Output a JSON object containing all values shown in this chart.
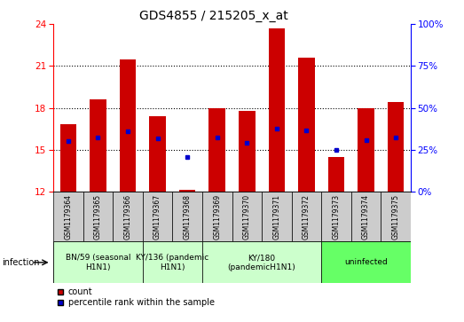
{
  "title": "GDS4855 / 215205_x_at",
  "samples": [
    "GSM1179364",
    "GSM1179365",
    "GSM1179366",
    "GSM1179367",
    "GSM1179368",
    "GSM1179369",
    "GSM1179370",
    "GSM1179371",
    "GSM1179372",
    "GSM1179373",
    "GSM1179374",
    "GSM1179375"
  ],
  "bar_heights": [
    16.8,
    18.6,
    21.5,
    17.4,
    12.15,
    18.0,
    17.8,
    23.7,
    21.6,
    14.5,
    18.0,
    18.4
  ],
  "bar_bottom": 12,
  "percentile_values": [
    15.6,
    15.9,
    16.3,
    15.8,
    14.45,
    15.9,
    15.5,
    16.5,
    16.4,
    15.0,
    15.7,
    15.9
  ],
  "ylim_left": [
    12,
    24
  ],
  "ylim_right": [
    0,
    100
  ],
  "yticks_left": [
    12,
    15,
    18,
    21,
    24
  ],
  "yticks_right": [
    0,
    25,
    50,
    75,
    100
  ],
  "bar_color": "#cc0000",
  "percentile_color": "#0000cc",
  "group_defs": [
    {
      "start": 0,
      "end": 2,
      "label": "BN/59 (seasonal\nH1N1)",
      "color": "#ccffcc"
    },
    {
      "start": 3,
      "end": 4,
      "label": "KY/136 (pandemic\nH1N1)",
      "color": "#ccffcc"
    },
    {
      "start": 5,
      "end": 8,
      "label": "KY/180\n(pandemicH1N1)",
      "color": "#ccffcc"
    },
    {
      "start": 9,
      "end": 11,
      "label": "uninfected",
      "color": "#66ff66"
    }
  ],
  "legend_count_label": "count",
  "legend_percentile_label": "percentile rank within the sample",
  "infection_label": "infection",
  "sample_box_color": "#cccccc",
  "grid_yticks": [
    15,
    18,
    21
  ],
  "title_fontsize": 10,
  "tick_fontsize": 7.5,
  "sample_fontsize": 5.5,
  "group_fontsize": 6.5,
  "legend_fontsize": 7
}
